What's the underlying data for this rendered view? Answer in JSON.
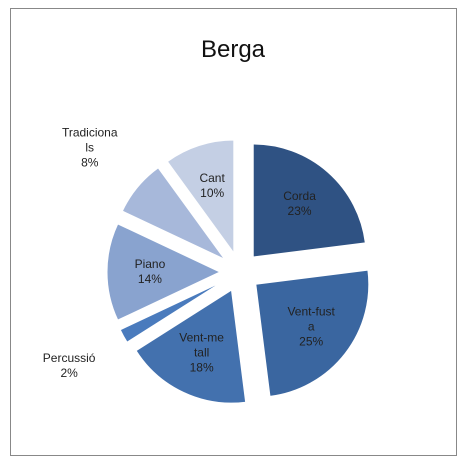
{
  "chart_data": {
    "type": "pie",
    "title": "Berga",
    "categories": [
      "Corda",
      "Vent-fusta",
      "Vent-metall",
      "Percussió",
      "Piano",
      "Tradicionals",
      "Cant"
    ],
    "values": [
      23,
      25,
      18,
      2,
      14,
      8,
      10
    ],
    "value_labels": [
      "23%",
      "25%",
      "18%",
      "2%",
      "14%",
      "8%",
      "10%"
    ],
    "colors": [
      "#2f5283",
      "#3a66a0",
      "#4371ae",
      "#4a7bbd",
      "#89a3cf",
      "#a7b8da",
      "#c4cfe4"
    ]
  }
}
